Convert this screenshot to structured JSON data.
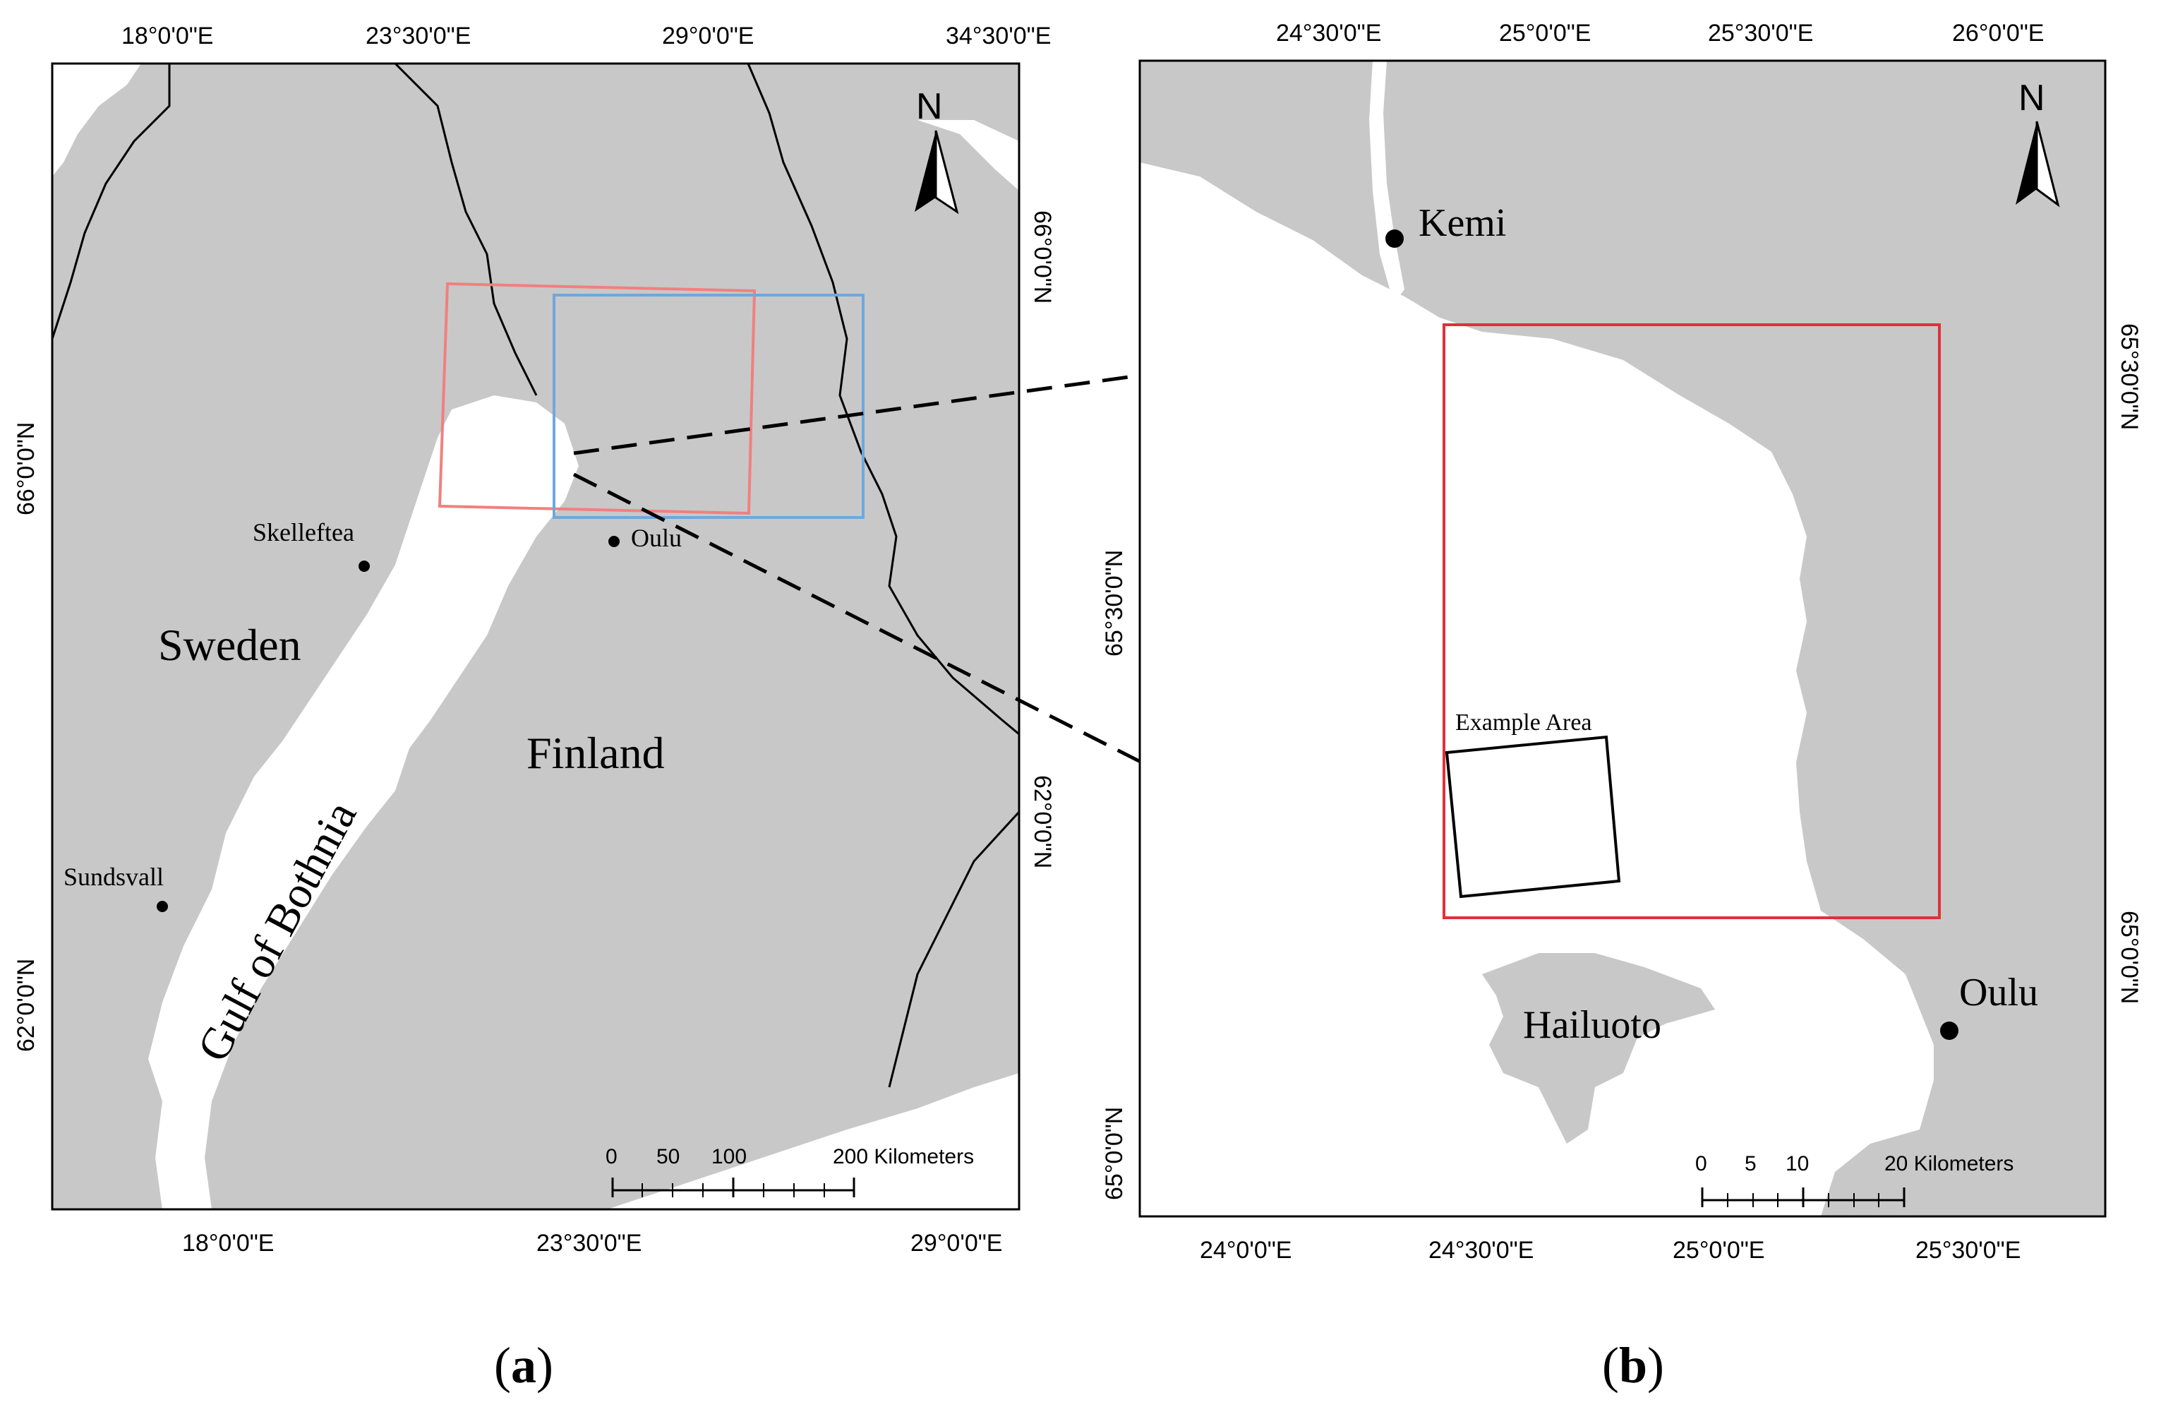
{
  "panels": {
    "a": {
      "label": "a",
      "top_lon_labels": [
        "18°0'0\"E",
        "23°30'0\"E",
        "29°0'0\"E",
        "34°30'0\"E"
      ],
      "bottom_lon_labels": [
        "18°0'0\"E",
        "23°30'0\"E",
        "29°0'0\"E"
      ],
      "left_lat_labels": [
        "66°0'0\"N",
        "62°0'0\"N"
      ],
      "right_lat_labels": [
        "66°0'0\"N",
        "62°0'0\"N"
      ],
      "places": {
        "skelleftea": "Skelleftea",
        "sundsvall": "Sundsvall",
        "oulu": "Oulu"
      },
      "regions": {
        "sweden": "Sweden",
        "finland": "Finland",
        "gulf": "Gulf of Bothnia"
      },
      "north": "N",
      "scale": {
        "ticks": [
          "0",
          "50",
          "100",
          "200 Kilometers"
        ]
      },
      "box_colors": {
        "red_box": "#f08080",
        "blue_box": "#6fa8dc"
      }
    },
    "b": {
      "label": "b",
      "top_lon_labels": [
        "24°30'0\"E",
        "25°0'0\"E",
        "25°30'0\"E",
        "26°0'0\"E"
      ],
      "bottom_lon_labels": [
        "24°0'0\"E",
        "24°30'0\"E",
        "25°0'0\"E",
        "25°30'0\"E"
      ],
      "left_lat_labels": [
        "65°30'0\"N",
        "65°0'0\"N"
      ],
      "right_lat_labels": [
        "65°30'0\"N",
        "65°0'0\"N"
      ],
      "places": {
        "kemi": "Kemi",
        "oulu": "Oulu",
        "hailuoto": "Hailuoto",
        "example_area": "Example Area"
      },
      "north": "N",
      "scale": {
        "ticks": [
          "0",
          "5",
          "10",
          "20 Kilometers"
        ]
      },
      "box_colors": {
        "study_box": "#e0303a",
        "example_box": "#000000"
      }
    }
  },
  "colors": {
    "land": "#c8c8c8",
    "water": "#ffffff",
    "border": "#000000"
  }
}
